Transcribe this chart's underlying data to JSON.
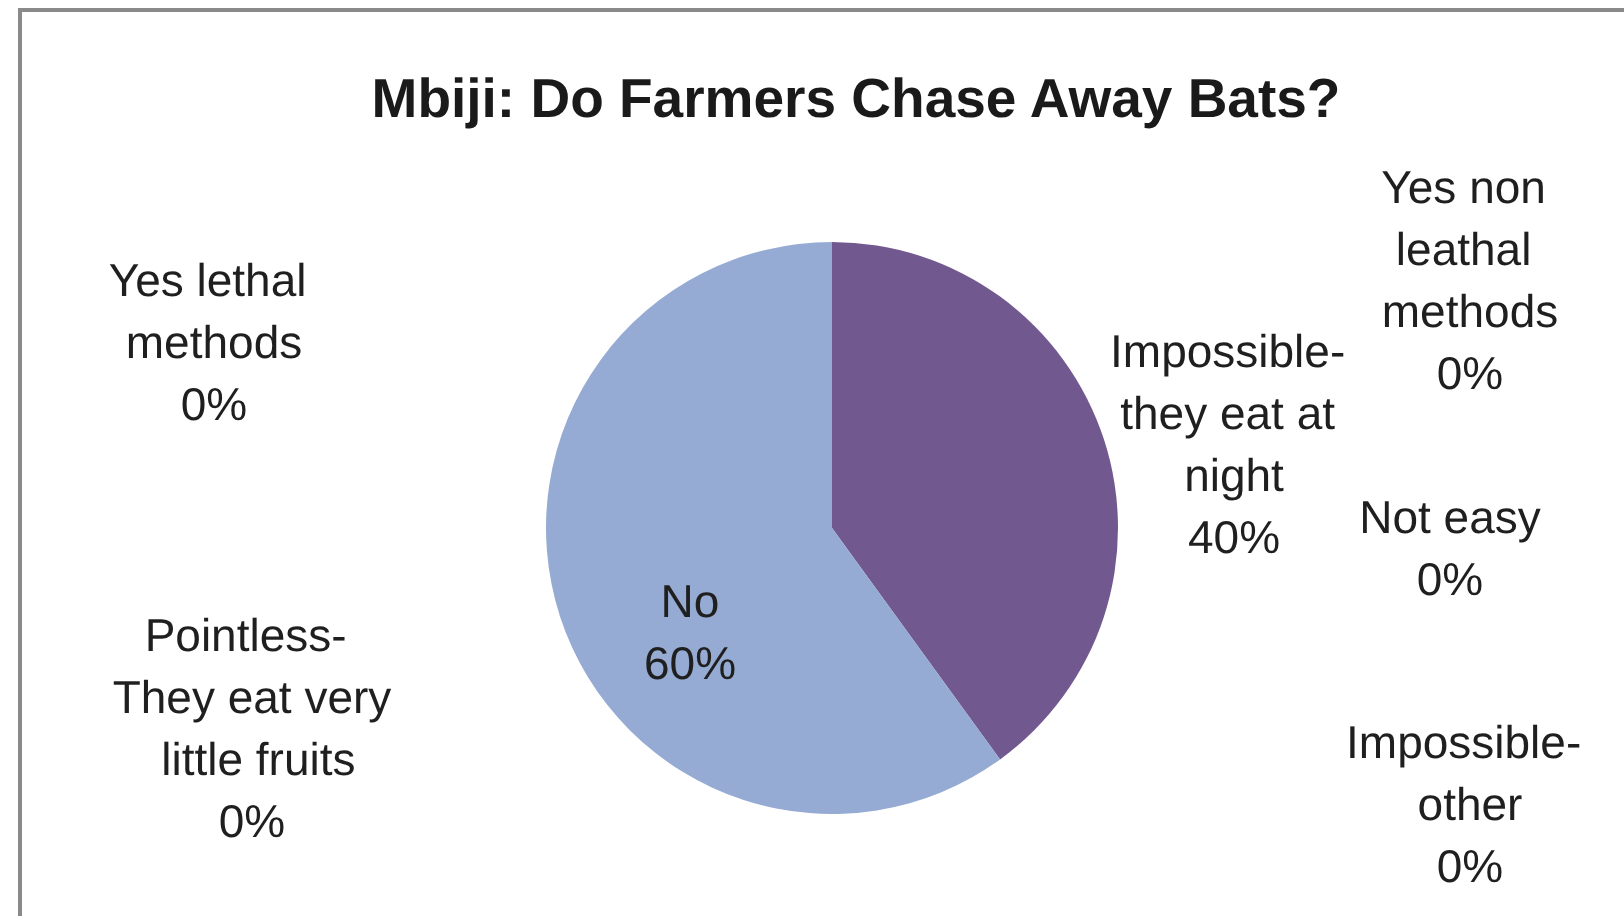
{
  "chart_data": {
    "type": "pie",
    "title": "Mbiji: Do Farmers Chase Away Bats?",
    "categories": [
      "Yes non leathal methods",
      "Impossible- they eat at night",
      "Not easy",
      "Impossible- other",
      "Pointless- They eat very little fruits",
      "No",
      "Yes lethal methods"
    ],
    "values": [
      0,
      40,
      0,
      0,
      0,
      60,
      0
    ],
    "colors": [
      null,
      "#71588f",
      null,
      null,
      null,
      "#95abd3",
      null
    ],
    "value_labels": [
      "0%",
      "40%",
      "0%",
      "0%",
      "0%",
      "60%",
      "0%"
    ]
  }
}
